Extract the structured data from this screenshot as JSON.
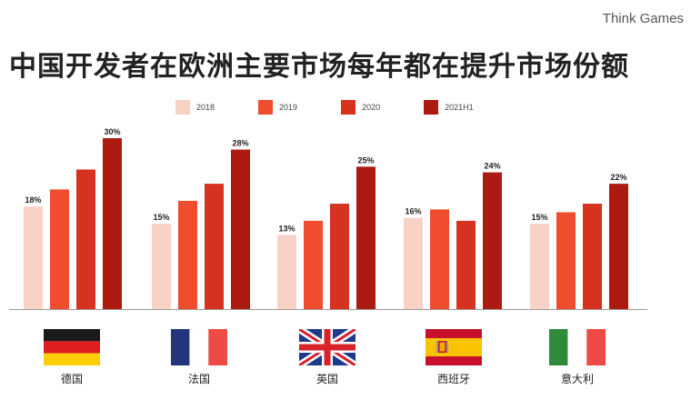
{
  "brand": "Think Games",
  "title": "中国开发者在欧洲主要市场每年都在提升市场份额",
  "colors": [
    "#f8d2c5",
    "#f04c2e",
    "#d5321f",
    "#ad1a12"
  ],
  "chart_data": {
    "type": "bar",
    "title": "中国开发者在欧洲主要市场每年都在提升市场份额",
    "categories": [
      "德国",
      "法国",
      "英国",
      "西班牙",
      "意大利"
    ],
    "series": [
      {
        "name": "2018",
        "values": [
          18,
          15,
          13,
          16,
          15
        ],
        "labels": [
          "18%",
          "15%",
          "13%",
          "16%",
          "15%"
        ]
      },
      {
        "name": "2019",
        "values": [
          21,
          19,
          15.5,
          17.5,
          17
        ]
      },
      {
        "name": "2020",
        "values": [
          24.5,
          22,
          18.5,
          15.5,
          18.5
        ]
      },
      {
        "name": "2021H1",
        "values": [
          30,
          28,
          25,
          24,
          22
        ],
        "labels": [
          "30%",
          "28%",
          "25%",
          "24%",
          "22%"
        ]
      }
    ],
    "ylim": [
      0,
      30
    ],
    "grid": false,
    "legend": "top"
  },
  "flags": [
    "germany-flag",
    "france-flag",
    "uk-flag",
    "spain-flag",
    "italy-flag"
  ]
}
